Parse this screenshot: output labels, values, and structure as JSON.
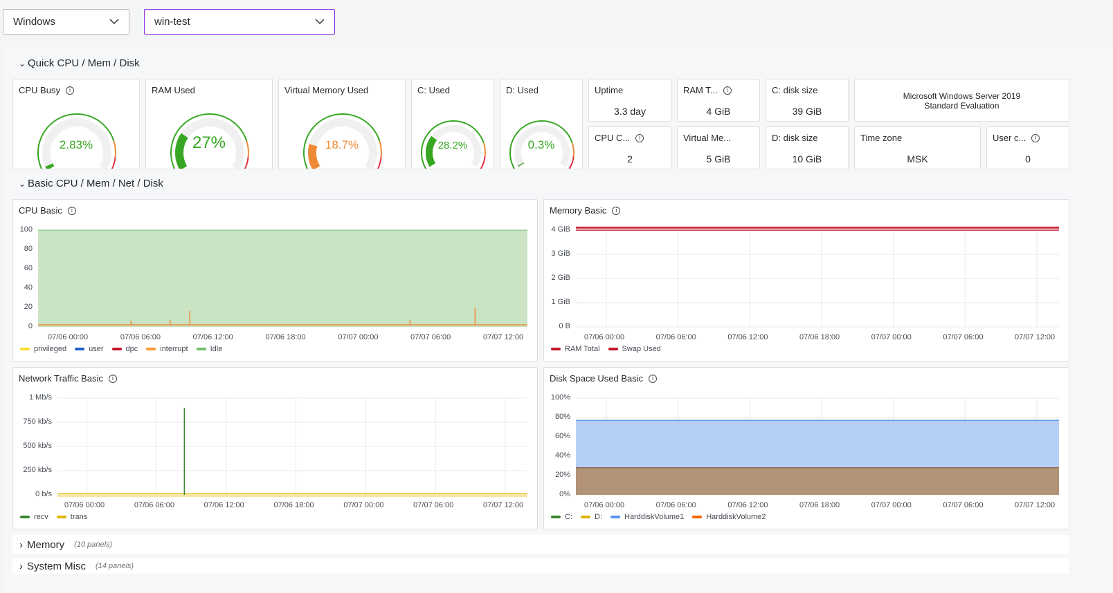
{
  "variables": {
    "job": "Windows",
    "host": "win-test"
  },
  "rows": {
    "quick": "Quick CPU / Mem / Disk",
    "basic": "Basic CPU / Mem / Net / Disk",
    "memory": "Memory",
    "memory_count": "(10 panels)",
    "system": "System Misc",
    "system_count": "(14 panels)"
  },
  "gauges": [
    {
      "title": "CPU Busy",
      "value": "2.83%",
      "fraction": 0.0283,
      "color": "#37a723",
      "info": true
    },
    {
      "title": "RAM Used",
      "value": "27%",
      "fraction": 0.27,
      "color": "#37a723",
      "info": false
    },
    {
      "title": "Virtual Memory Used",
      "value": "18.7%",
      "fraction": 0.187,
      "color": "#ee8a35",
      "info": false
    },
    {
      "title": "C: Used",
      "value": "28.2%",
      "fraction": 0.282,
      "color": "#37a723",
      "info": false
    },
    {
      "title": "D: Used",
      "value": "0.3%",
      "fraction": 0.003,
      "color": "#37a723",
      "info": false
    }
  ],
  "stats": {
    "uptime": {
      "title": "Uptime",
      "value": "3.3 day"
    },
    "ram_total": {
      "title": "RAM T...",
      "value": "4 GiB"
    },
    "c_disk": {
      "title": "C: disk size",
      "value": "39 GiB"
    },
    "os": {
      "value": "Microsoft Windows Server 2019 Standard Evaluation"
    },
    "cpu_cores": {
      "title": "CPU C...",
      "value": "2"
    },
    "virt_mem": {
      "title": "Virtual Me...",
      "value": "5 GiB"
    },
    "d_disk": {
      "title": "D: disk size",
      "value": "10 GiB"
    },
    "timezone": {
      "title": "Time zone",
      "value": "MSK"
    },
    "users": {
      "title": "User c...",
      "value": "0"
    }
  },
  "charts": {
    "cpu": {
      "title": "CPU Basic"
    },
    "memory": {
      "title": "Memory Basic"
    },
    "network": {
      "title": "Network Traffic Basic"
    },
    "disk": {
      "title": "Disk Space Used Basic"
    }
  },
  "chart_data": [
    {
      "type": "area",
      "title": "CPU Basic",
      "x_ticks": [
        "07/06 00:00",
        "07/06 06:00",
        "07/06 12:00",
        "07/06 18:00",
        "07/07 00:00",
        "07/07 06:00",
        "07/07 12:00"
      ],
      "y_ticks": [
        "100",
        "80",
        "60",
        "40",
        "20",
        "0"
      ],
      "ylim": [
        0,
        100
      ],
      "series": [
        {
          "name": "privileged",
          "color": "#fade2a",
          "values": [
            1,
            1,
            1,
            1,
            1,
            1,
            1
          ]
        },
        {
          "name": "user",
          "color": "#1f60c4",
          "values": [
            0.5,
            0.5,
            0.5,
            0.5,
            0.5,
            0.5,
            0.5
          ]
        },
        {
          "name": "dpc",
          "color": "#c4162a",
          "values": [
            0,
            0,
            0,
            0,
            0,
            0,
            0
          ]
        },
        {
          "name": "interrupt",
          "color": "#ff9830",
          "values": [
            1,
            1,
            1,
            1,
            1,
            1,
            1
          ]
        },
        {
          "name": "Idle",
          "color": "#73bf69",
          "values": [
            97,
            97,
            97,
            97,
            97,
            97,
            97
          ]
        }
      ]
    },
    {
      "type": "line",
      "title": "Memory Basic",
      "x_ticks": [
        "07/06 00:00",
        "07/06 06:00",
        "07/06 12:00",
        "07/06 18:00",
        "07/07 00:00",
        "07/07 06:00",
        "07/07 12:00"
      ],
      "y_ticks": [
        "4 GiB",
        "3 GiB",
        "2 GiB",
        "1 GiB",
        "0 B"
      ],
      "ylim": [
        0,
        4
      ],
      "series": [
        {
          "name": "RAM Total",
          "color": "#c4162a",
          "values": [
            4,
            4,
            4,
            4,
            4,
            4,
            4
          ]
        },
        {
          "name": "Swap Used",
          "color": "#c4162a",
          "values": [
            4.1,
            4.1,
            4.1,
            4.1,
            4.1,
            4.1,
            4.1
          ]
        }
      ]
    },
    {
      "type": "line",
      "title": "Network Traffic Basic",
      "x_ticks": [
        "07/06 00:00",
        "07/06 06:00",
        "07/06 12:00",
        "07/06 18:00",
        "07/07 00:00",
        "07/07 06:00",
        "07/07 12:00"
      ],
      "y_ticks": [
        "1 Mb/s",
        "750 kb/s",
        "500 kb/s",
        "250 kb/s",
        "0 b/s"
      ],
      "ylim": [
        0,
        1000
      ],
      "series": [
        {
          "name": "recv",
          "color": "#37872d",
          "values": [
            0,
            0,
            900,
            0,
            0,
            0,
            0
          ]
        },
        {
          "name": "trans",
          "color": "#e0b400",
          "values": [
            0,
            0,
            0,
            0,
            0,
            0,
            0
          ]
        }
      ]
    },
    {
      "type": "area",
      "title": "Disk Space Used Basic",
      "x_ticks": [
        "07/06 00:00",
        "07/06 06:00",
        "07/06 12:00",
        "07/06 18:00",
        "07/07 00:00",
        "07/07 06:00",
        "07/07 12:00"
      ],
      "y_ticks": [
        "100%",
        "80%",
        "60%",
        "40%",
        "20%",
        "0%"
      ],
      "ylim": [
        0,
        100
      ],
      "series": [
        {
          "name": "C:",
          "color": "#37872d",
          "values": [
            28,
            28,
            28,
            28,
            28,
            28,
            28
          ]
        },
        {
          "name": "D:",
          "color": "#e0b400",
          "values": [
            0.3,
            0.3,
            0.3,
            0.3,
            0.3,
            0.3,
            0.3
          ]
        },
        {
          "name": "HarddiskVolume1",
          "color": "#5794f2",
          "values": [
            77,
            77,
            77,
            77,
            77,
            77,
            77
          ]
        },
        {
          "name": "HarddiskVolume2",
          "color": "#fa6400",
          "values": [
            28,
            28,
            28,
            28,
            28,
            28,
            28
          ]
        }
      ]
    }
  ]
}
